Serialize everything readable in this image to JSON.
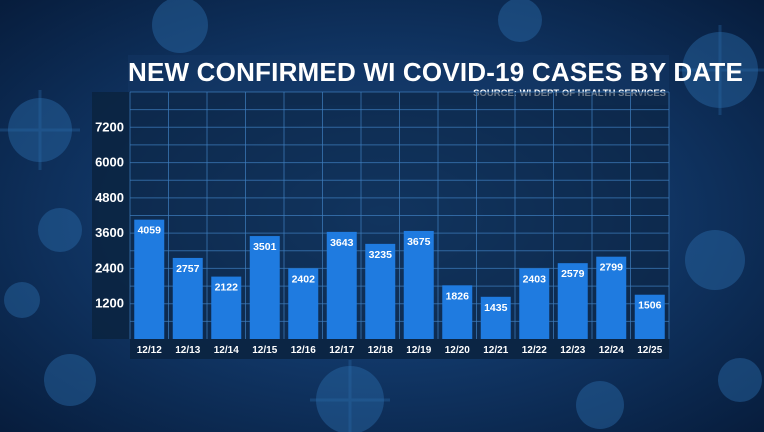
{
  "title": "NEW CONFIRMED WI COVID-19 CASES BY DATE",
  "source": "SOURCE: WI DEPT OF HEALTH SERVICES",
  "colors": {
    "bar": "#1f7be0",
    "background": "#0a2f5c",
    "plot": "#0b2340",
    "grid": "#3f7fc0",
    "text": "#ffffff"
  },
  "chart_data": {
    "type": "bar",
    "categories": [
      "12/12",
      "12/13",
      "12/14",
      "12/15",
      "12/16",
      "12/17",
      "12/18",
      "12/19",
      "12/20",
      "12/21",
      "12/22",
      "12/23",
      "12/24",
      "12/25"
    ],
    "values": [
      4059,
      2757,
      2122,
      3501,
      2402,
      3643,
      3235,
      3675,
      1826,
      1435,
      2403,
      2579,
      2799,
      1506
    ],
    "yticks": [
      1200,
      2400,
      3600,
      4800,
      6000,
      7200
    ],
    "ylim": [
      0,
      8400
    ],
    "grid": true,
    "xlabel": "",
    "ylabel": ""
  }
}
